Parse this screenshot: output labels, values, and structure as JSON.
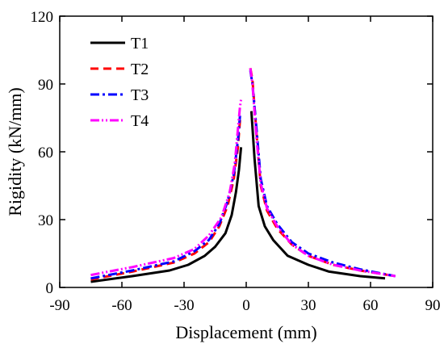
{
  "chart_data": {
    "type": "line",
    "title": "",
    "xlabel": "Displacement (mm)",
    "ylabel": "Rigidity (kN/mm)",
    "xlim": [
      -90,
      90
    ],
    "ylim": [
      0,
      120
    ],
    "xticks": [
      -90,
      -60,
      -30,
      0,
      30,
      60,
      90
    ],
    "yticks": [
      0,
      30,
      60,
      90,
      120
    ],
    "grid": false,
    "legend_position": "top-left",
    "series": [
      {
        "name": "T1",
        "color": "#000000",
        "dash": "solid",
        "x": [
          -75,
          -55,
          -37,
          -28,
          -20,
          -15,
          -10,
          -7,
          -5,
          -3.5,
          -2.5,
          2.5,
          4,
          6,
          9,
          13,
          20,
          30,
          40,
          55,
          67
        ],
        "y": [
          2.5,
          5,
          7.5,
          10,
          14,
          18,
          24,
          32,
          42,
          52,
          62,
          78,
          57,
          36,
          27,
          21,
          14,
          10,
          7,
          5,
          4
        ]
      },
      {
        "name": "T2",
        "color": "#ff0000",
        "dash": "dashed",
        "x": [
          -75,
          -55,
          -35,
          -25,
          -18,
          -13,
          -9,
          -6,
          -4,
          -3,
          2,
          3,
          5,
          7,
          10,
          15,
          22,
          30,
          42,
          55,
          72
        ],
        "y": [
          3.5,
          7,
          11,
          15,
          20,
          27,
          36,
          48,
          62,
          74,
          97,
          92,
          68,
          45,
          34,
          26,
          19,
          14,
          10,
          7.5,
          5
        ]
      },
      {
        "name": "T3",
        "color": "#0000ff",
        "dash": "dashdot",
        "x": [
          -75,
          -55,
          -35,
          -25,
          -18,
          -13,
          -9,
          -6,
          -4,
          -3,
          2,
          3,
          5,
          7,
          10,
          15,
          22,
          30,
          42,
          55,
          72
        ],
        "y": [
          4,
          7.5,
          11.5,
          16,
          21,
          28,
          38,
          50,
          65,
          76,
          96,
          90,
          70,
          48,
          36,
          28,
          20,
          15,
          11,
          8,
          5
        ]
      },
      {
        "name": "T4",
        "color": "#ff00ff",
        "dash": "dashdotdot",
        "x": [
          -75,
          -55,
          -35,
          -25,
          -18,
          -12,
          -8,
          -5.5,
          -4,
          -3,
          -2.5,
          2,
          3,
          5,
          7,
          10,
          15,
          22,
          30,
          42,
          55,
          72
        ],
        "y": [
          5.5,
          9,
          13,
          17,
          23,
          31,
          42,
          55,
          70,
          80,
          83,
          97,
          90,
          66,
          46,
          35,
          27,
          19,
          14,
          10,
          7.5,
          5
        ]
      }
    ]
  }
}
